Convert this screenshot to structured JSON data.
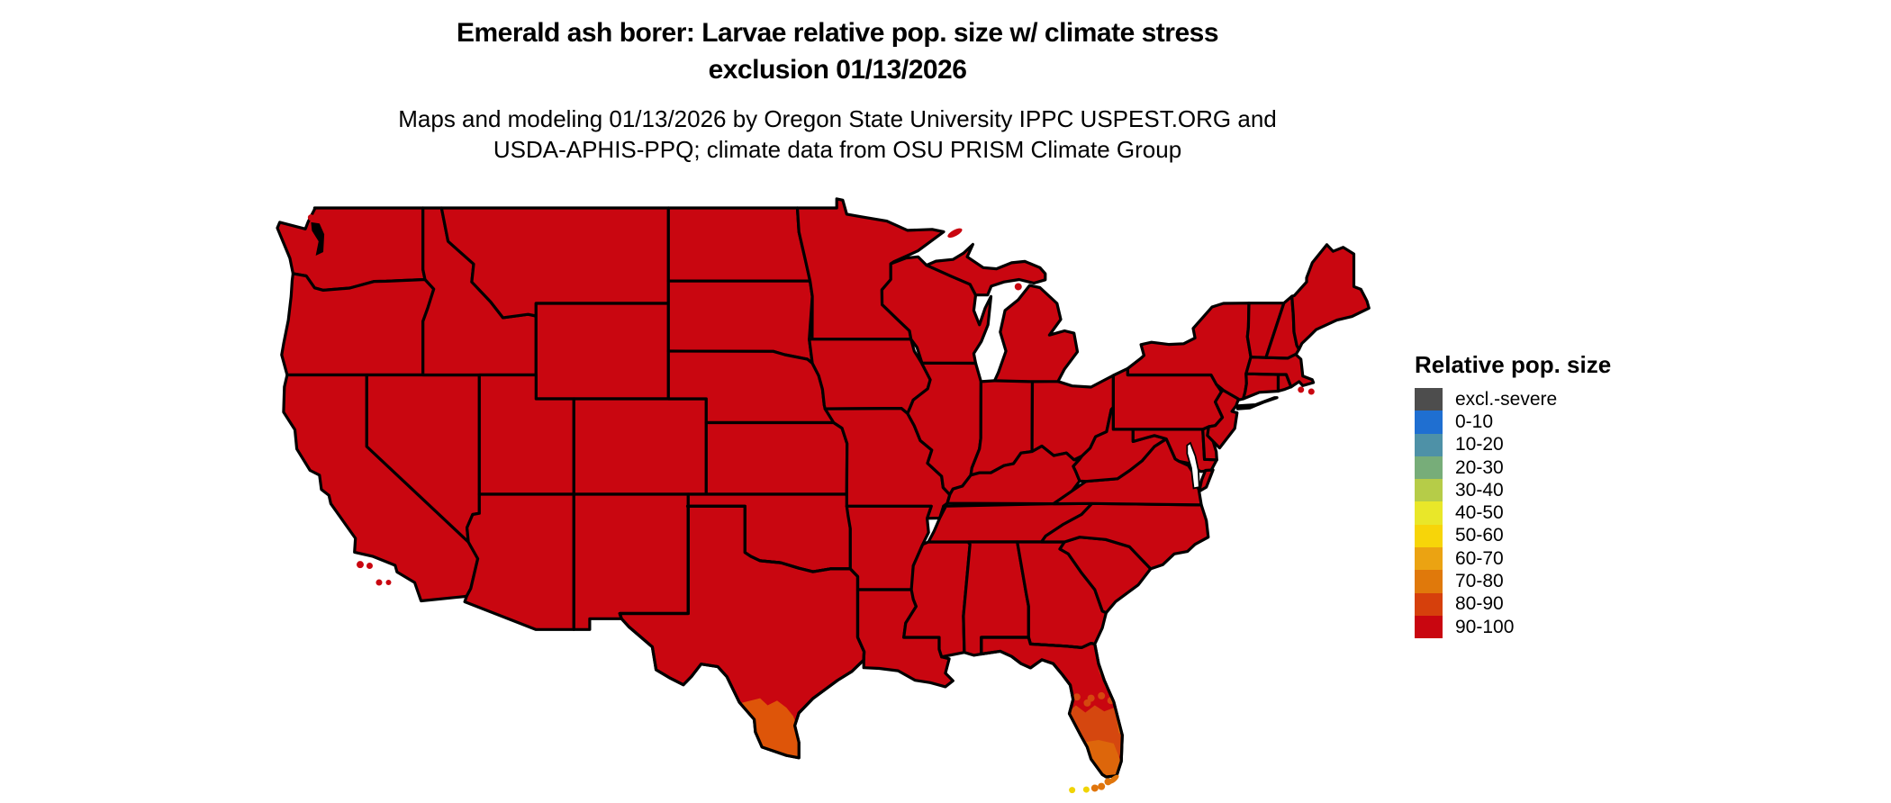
{
  "title": {
    "line1": "Emerald ash borer: Larvae relative pop. size w/ climate stress",
    "line2": "exclusion 01/13/2026"
  },
  "subtitle": {
    "line1": "Maps and modeling 01/13/2026 by Oregon State University IPPC USPEST.ORG and",
    "line2": "USDA-APHIS-PPQ; climate data from OSU PRISM Climate Group"
  },
  "legend": {
    "title": "Relative pop. size",
    "items": [
      {
        "label": "excl.-severe",
        "color": "#4d4d4d"
      },
      {
        "label": "0-10",
        "color": "#1f6fd1"
      },
      {
        "label": "10-20",
        "color": "#4e91a7"
      },
      {
        "label": "20-30",
        "color": "#77ad79"
      },
      {
        "label": "30-40",
        "color": "#b6cc48"
      },
      {
        "label": "40-50",
        "color": "#e9e729"
      },
      {
        "label": "50-60",
        "color": "#f7d509"
      },
      {
        "label": "60-70",
        "color": "#eba312"
      },
      {
        "label": "70-80",
        "color": "#e0790b"
      },
      {
        "label": "80-90",
        "color": "#d6400c"
      },
      {
        "label": "90-100",
        "color": "#c90610"
      }
    ]
  },
  "map": {
    "base_category": "90-100",
    "base_color": "#c90610",
    "border_color": "#000000",
    "background_color": "#ffffff",
    "regions": [
      {
        "area": "Conterminous United States (most areas)",
        "category": "90-100"
      },
      {
        "area": "Southern Texas - Rio Grande Valley",
        "category": "70-90"
      },
      {
        "area": "Southern Florida peninsula",
        "category": "70-90"
      },
      {
        "area": "Florida Keys",
        "category": "50-80"
      }
    ],
    "patch_colors": {
      "texas_patch": "#de5509",
      "florida_band": "#d5470f",
      "florida_tip": "#dd660b",
      "florida_coast_fringe": "#e07a0c",
      "keys_orange": "#e0750c",
      "keys_yellow": "#f0d405"
    }
  }
}
